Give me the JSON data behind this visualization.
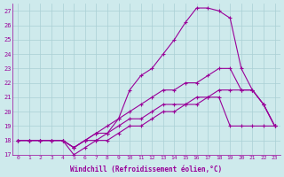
{
  "xlabel": "Windchill (Refroidissement éolien,°C)",
  "bg_color": "#ceeaec",
  "grid_color": "#aacfd4",
  "line_color": "#990099",
  "xlim": [
    -0.5,
    23.5
  ],
  "ylim": [
    17,
    27.5
  ],
  "yticks": [
    17,
    18,
    19,
    20,
    21,
    22,
    23,
    24,
    25,
    26,
    27
  ],
  "xticks": [
    0,
    1,
    2,
    3,
    4,
    5,
    6,
    7,
    8,
    9,
    10,
    11,
    12,
    13,
    14,
    15,
    16,
    17,
    18,
    19,
    20,
    21,
    22,
    23
  ],
  "series": [
    [
      18.0,
      18.0,
      18.0,
      18.0,
      18.0,
      17.0,
      17.5,
      18.0,
      18.5,
      19.5,
      21.5,
      22.5,
      23.0,
      24.0,
      25.0,
      26.2,
      27.2,
      27.2,
      27.0,
      26.5,
      23.0,
      21.5,
      20.5,
      19.0
    ],
    [
      18.0,
      18.0,
      18.0,
      18.0,
      18.0,
      17.5,
      18.0,
      18.0,
      18.0,
      18.5,
      19.0,
      19.0,
      19.5,
      20.0,
      20.0,
      20.5,
      20.5,
      21.0,
      21.0,
      19.0,
      19.0,
      19.0,
      19.0,
      19.0
    ],
    [
      18.0,
      18.0,
      18.0,
      18.0,
      18.0,
      17.5,
      18.0,
      18.5,
      19.0,
      19.5,
      20.0,
      20.5,
      21.0,
      21.5,
      21.5,
      22.0,
      22.0,
      22.5,
      23.0,
      23.0,
      21.5,
      21.5,
      20.5,
      19.0
    ],
    [
      18.0,
      18.0,
      18.0,
      18.0,
      18.0,
      17.5,
      18.0,
      18.5,
      18.5,
      19.0,
      19.5,
      19.5,
      20.0,
      20.5,
      20.5,
      20.5,
      21.0,
      21.0,
      21.5,
      21.5,
      21.5,
      21.5,
      20.5,
      19.0
    ]
  ]
}
